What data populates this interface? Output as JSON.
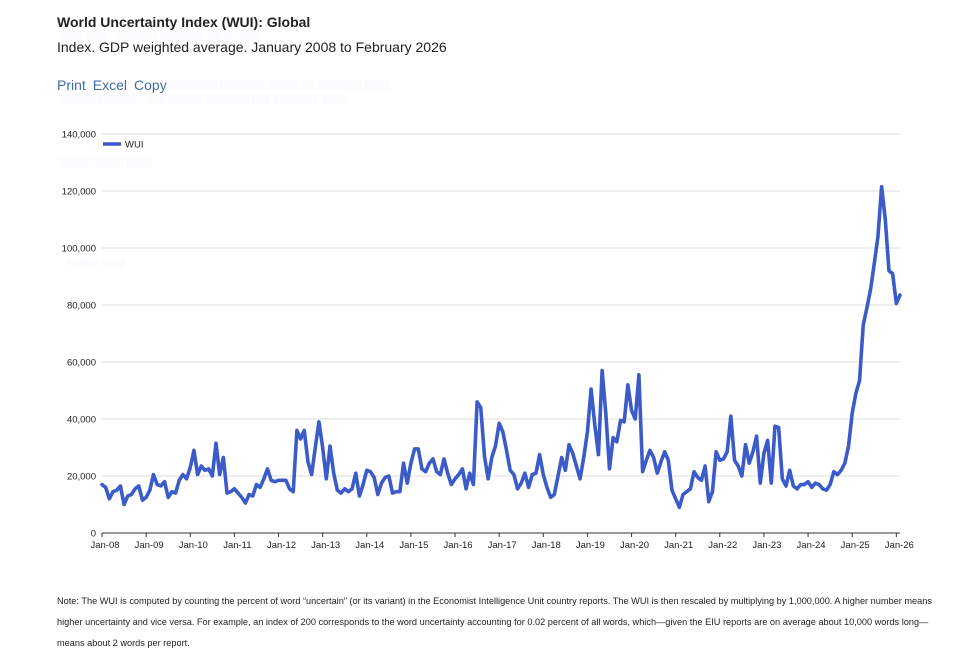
{
  "header": {
    "title": "World Uncertainty Index (WUI): Global",
    "subtitle": "Index. GDP weighted average. January 2008 to February 2026"
  },
  "toolbar": {
    "print": "Print",
    "excel": "Excel",
    "copy": "Copy"
  },
  "note": "Note: The WUI is computed by counting the percent of word “uncertain” (or its variant) in the Economist Intelligence Unit country reports. The WUI is then rescaled by multiplying by 1,000,000. A higher number means higher uncertainty and vice versa. For example, an index of 200 corresponds to the word uncertainty accounting for 0.02 percent of all words, which—given the EIU reports are on average about 10,000 words long—means about 2 words per report.",
  "colors": {
    "line": "#3b5bc9",
    "grid": "#dddddd",
    "axis": "#333333",
    "link": "#3f6aa8"
  },
  "chart_data": {
    "type": "line",
    "title": "World Uncertainty Index (WUI): Global",
    "xlabel": "",
    "ylabel": "",
    "ylim": [
      0,
      140000
    ],
    "yticks": [
      0,
      20000,
      40000,
      60000,
      80000,
      100000,
      120000,
      140000
    ],
    "ytick_labels": [
      "0",
      "20,000",
      "40,000",
      "60,000",
      "80,000",
      "100,000",
      "120,000",
      "140,000"
    ],
    "xticks": [
      "Jan-08",
      "Jan-09",
      "Jan-10",
      "Jan-11",
      "Jan-12",
      "Jan-13",
      "Jan-14",
      "Jan-15",
      "Jan-16",
      "Jan-17",
      "Jan-18",
      "Jan-19",
      "Jan-20",
      "Jan-21",
      "Jan-22",
      "Jan-23",
      "Jan-24",
      "Jan-25",
      "Jan-26"
    ],
    "legend": {
      "position": "top-left",
      "entries": [
        "WUI"
      ]
    },
    "grid": true,
    "series": [
      {
        "name": "WUI",
        "start": "Jan-08",
        "frequency": "monthly",
        "values": [
          17000,
          16000,
          12000,
          14500,
          15000,
          16500,
          10000,
          13000,
          13500,
          15500,
          16500,
          11500,
          12500,
          15000,
          20500,
          17000,
          16500,
          18000,
          12500,
          14500,
          14000,
          18500,
          20500,
          19000,
          23000,
          29000,
          20500,
          23500,
          22000,
          22500,
          20000,
          31500,
          20500,
          26500,
          14000,
          14500,
          15500,
          14000,
          12500,
          10500,
          13500,
          13000,
          17000,
          16000,
          19000,
          22500,
          18500,
          18000,
          18500,
          18500,
          18500,
          15500,
          14500,
          36000,
          33000,
          36000,
          25000,
          20500,
          30000,
          39000,
          30000,
          19000,
          30500,
          21000,
          15000,
          14000,
          15500,
          14500,
          15500,
          21000,
          13000,
          17000,
          22000,
          21500,
          19500,
          13500,
          17500,
          19500,
          20000,
          14000,
          14500,
          14500,
          24500,
          17500,
          24500,
          29500,
          29500,
          22500,
          21500,
          24500,
          26000,
          21500,
          20500,
          26000,
          21000,
          17000,
          19000,
          20500,
          22500,
          15500,
          21000,
          17000,
          46000,
          44000,
          27000,
          19000,
          26500,
          30500,
          38500,
          35500,
          29000,
          22000,
          20500,
          15500,
          17500,
          21000,
          16000,
          20500,
          21000,
          27500,
          20500,
          16000,
          12500,
          13500,
          20000,
          26500,
          22000,
          31000,
          28000,
          23500,
          19000,
          26500,
          35500,
          50500,
          38000,
          27500,
          57000,
          42000,
          22500,
          33500,
          32000,
          39500,
          39000,
          52000,
          43000,
          40000,
          55500,
          21500,
          25500,
          29000,
          26500,
          21000,
          25000,
          28500,
          25500,
          15000,
          12000,
          9000,
          13500,
          14500,
          15500,
          21500,
          19500,
          18500,
          23500,
          11000,
          14500,
          28500,
          25500,
          26000,
          28500,
          41000,
          25500,
          23500,
          20000,
          31000,
          24500,
          28500,
          34000,
          17500,
          28000,
          32500,
          17500,
          37500,
          37000,
          19000,
          16500,
          22000,
          16500,
          15500,
          17000,
          17000,
          18000,
          16000,
          17500,
          17000,
          15500,
          15000,
          17000,
          21500,
          20500,
          22000,
          24500,
          30500,
          42000,
          49000,
          53500,
          73000,
          79000,
          85500,
          94500,
          104000,
          121500,
          110000,
          92000,
          91000,
          80500,
          83500
        ]
      }
    ]
  }
}
